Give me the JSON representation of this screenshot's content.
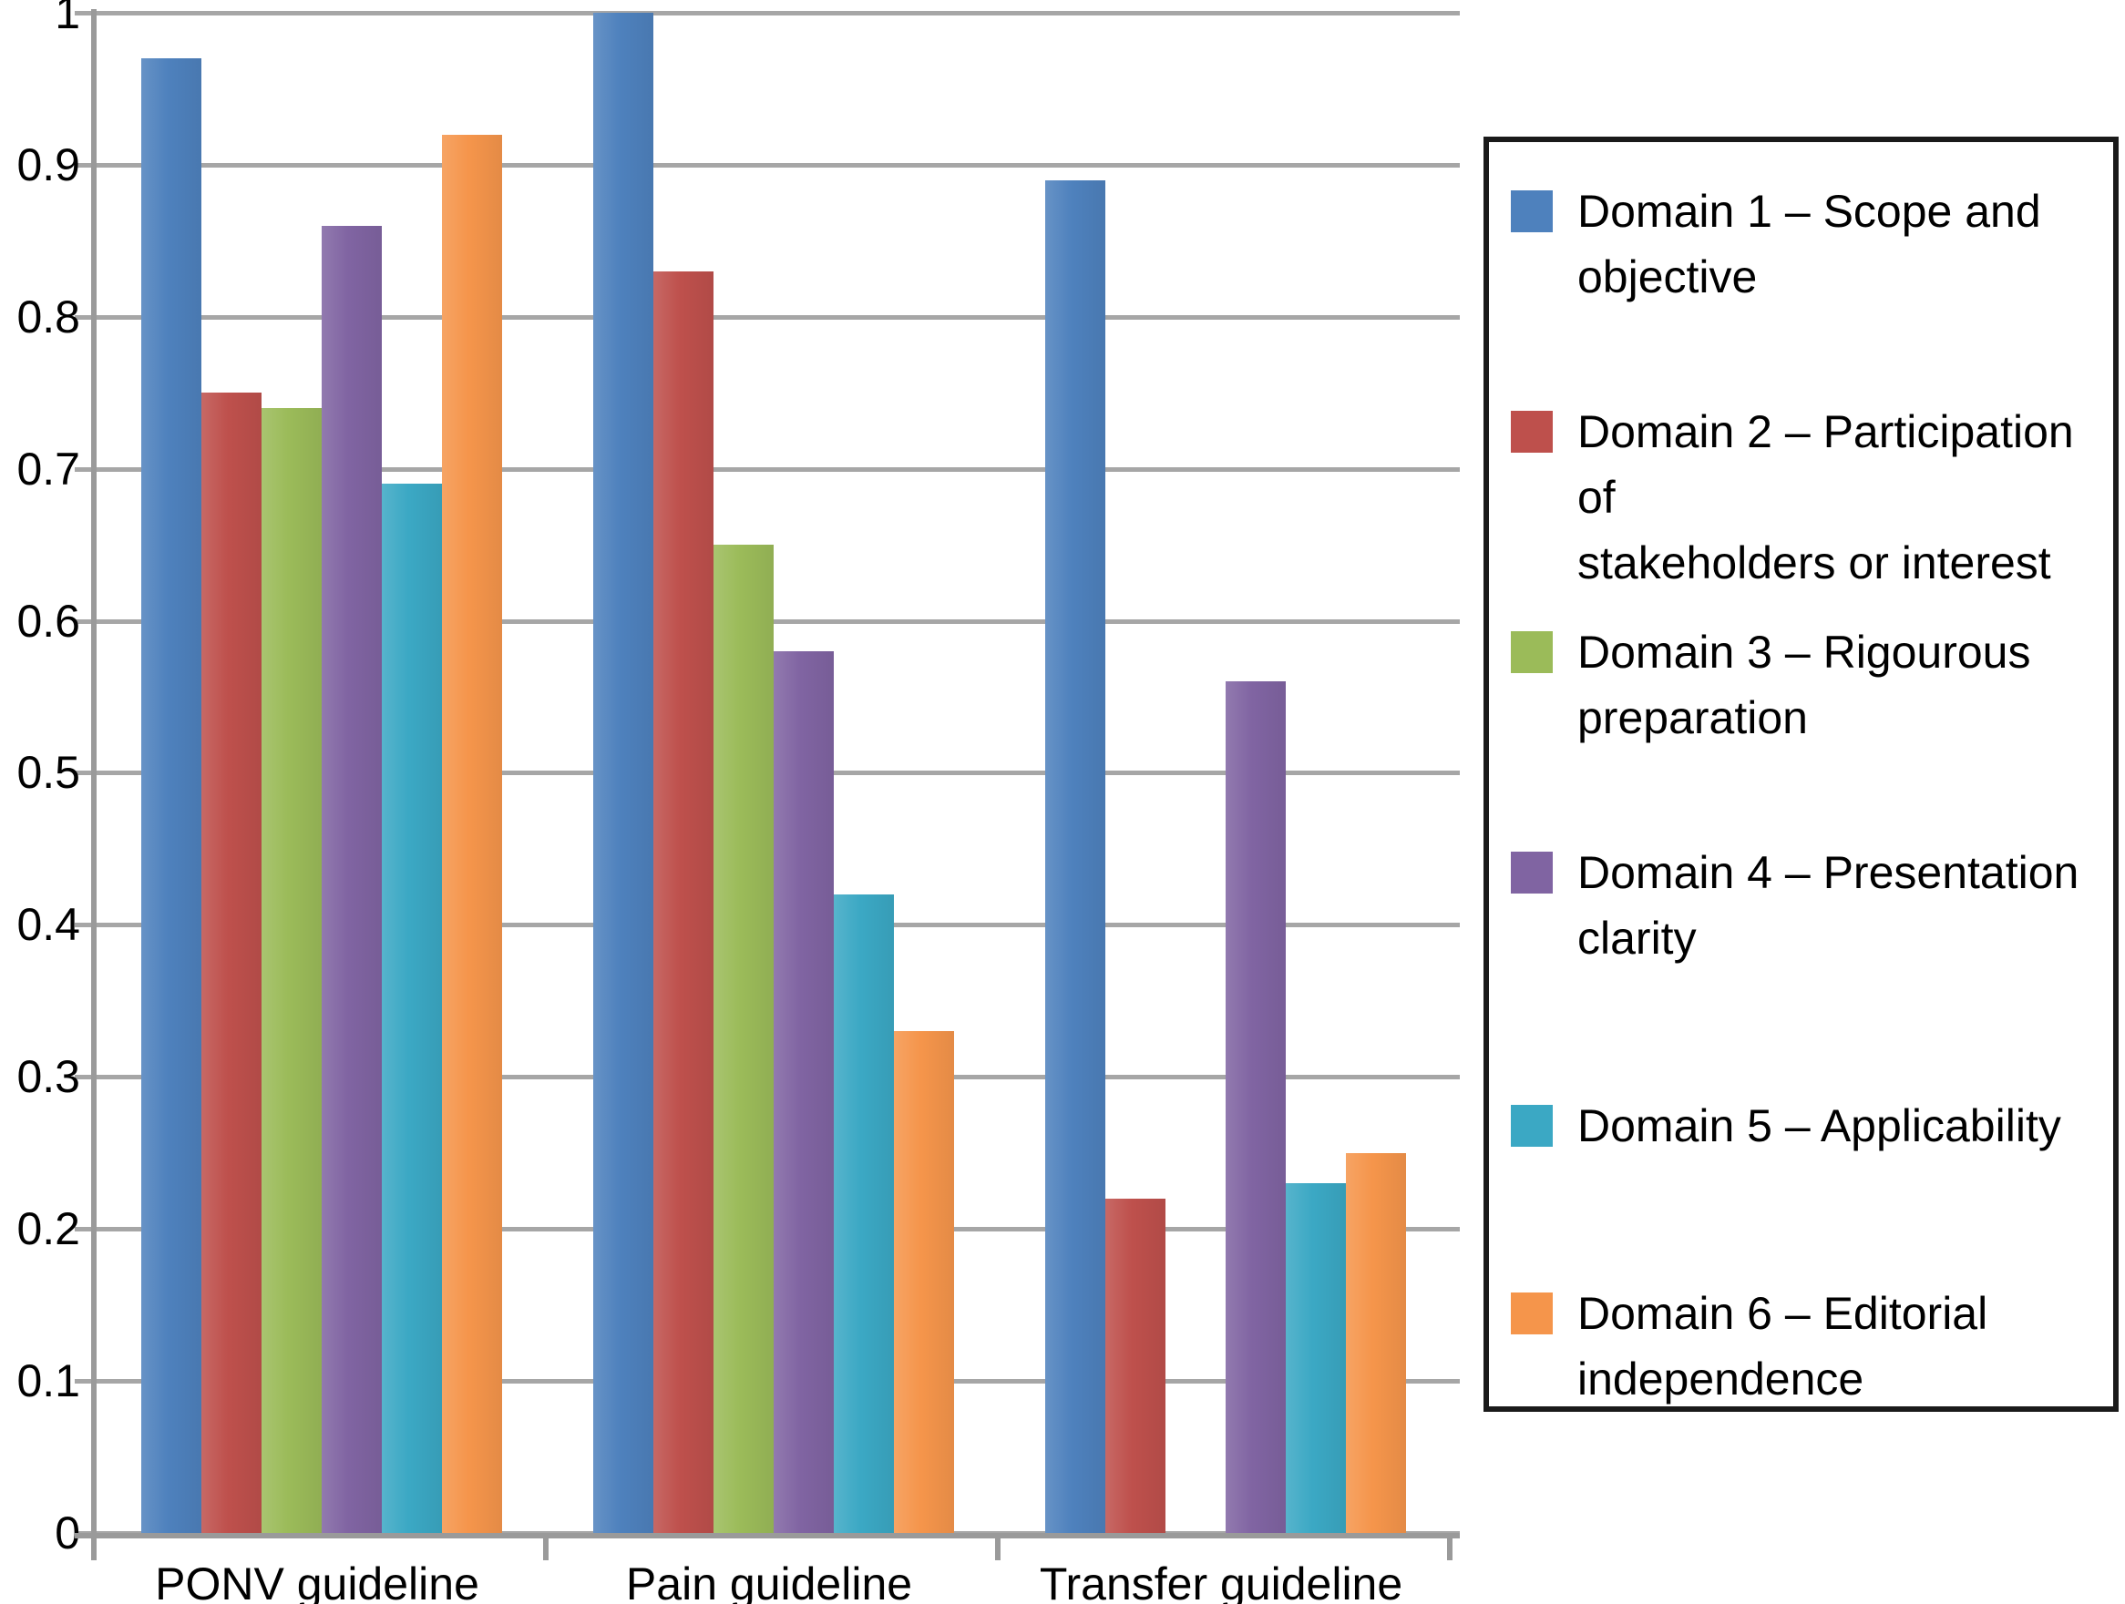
{
  "chart_data": {
    "type": "bar",
    "title": "",
    "xlabel": "",
    "ylabel": "",
    "categories": [
      "PONV guideline",
      "Pain guideline",
      "Transfer guideline"
    ],
    "series": [
      {
        "name": "Domain 1 – Scope and objective",
        "label_lines": [
          "Domain 1 – Scope and",
          "objective"
        ],
        "color": "#4E81BD",
        "values": [
          0.97,
          1.0,
          0.89
        ]
      },
      {
        "name": "Domain 2 – Participation of stakeholders or interest",
        "label_lines": [
          "Domain 2 – Participation of",
          "stakeholders or interest"
        ],
        "color": "#BE504C",
        "values": [
          0.75,
          0.83,
          0.22
        ]
      },
      {
        "name": "Domain 3 – Rigourous preparation",
        "label_lines": [
          "Domain 3 – Rigourous",
          "preparation"
        ],
        "color": "#9BBB59",
        "values": [
          0.74,
          0.65,
          0.0
        ]
      },
      {
        "name": "Domain 4 – Presentation clarity",
        "label_lines": [
          "Domain 4 – Presentation",
          "clarity"
        ],
        "color": "#8064A2",
        "values": [
          0.86,
          0.58,
          0.56
        ]
      },
      {
        "name": "Domain 5 – Applicability",
        "label_lines": [
          "Domain 5 – Applicability"
        ],
        "color": "#3BA8C4",
        "values": [
          0.69,
          0.42,
          0.23
        ]
      },
      {
        "name": "Domain 6 – Editorial independence",
        "label_lines": [
          "Domain 6 – Editorial",
          "independence"
        ],
        "color": "#F5954B",
        "values": [
          0.92,
          0.33,
          0.25
        ]
      }
    ],
    "ylim": [
      0,
      1
    ],
    "y_ticks": [
      "1",
      "0.9",
      "0.8",
      "0.7",
      "0.6",
      "0.5",
      "0.4",
      "0.3",
      "0.2",
      "0.1",
      "0"
    ],
    "grid": true,
    "legend_position": "right"
  },
  "colors": {
    "background": "#ffffff",
    "gridline": "#a6a6a6",
    "axis": "#9a9a9a",
    "legend_border": "#1a1a1a",
    "text": "#000000"
  }
}
